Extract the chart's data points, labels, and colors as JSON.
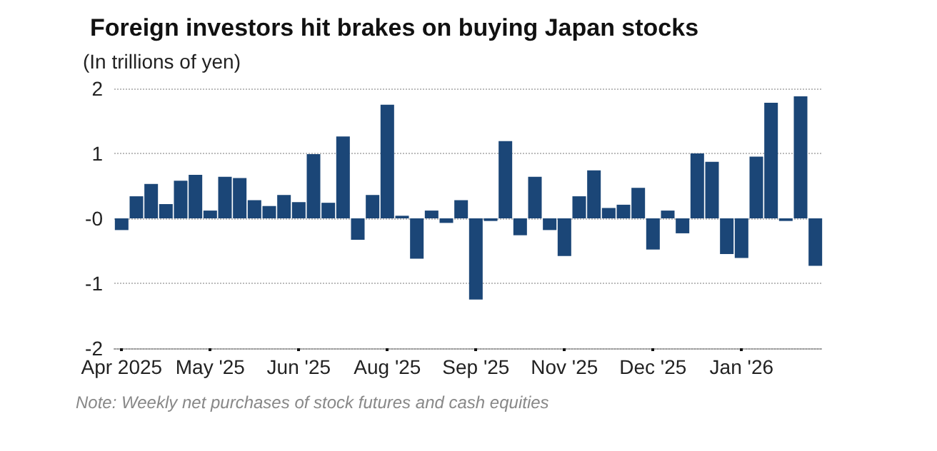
{
  "chart_data": {
    "type": "bar",
    "title": "Foreign investors hit brakes on buying Japan stocks",
    "ylabel": "(In trillions of yen)",
    "categories": [
      "Apr 2025",
      null,
      null,
      null,
      null,
      null,
      "May '25",
      null,
      null,
      null,
      null,
      null,
      "Jun '25",
      null,
      null,
      null,
      null,
      null,
      "Aug '25",
      null,
      null,
      null,
      null,
      null,
      "Sep '25",
      null,
      null,
      null,
      null,
      null,
      "Nov '25",
      null,
      null,
      null,
      null,
      null,
      "Dec '25",
      null,
      null,
      null,
      null,
      null,
      "Jan '26",
      null,
      null,
      null,
      null,
      null
    ],
    "values": [
      -0.18,
      0.34,
      0.53,
      0.22,
      0.58,
      0.67,
      0.12,
      0.64,
      0.62,
      0.28,
      0.19,
      0.36,
      0.25,
      0.99,
      0.24,
      1.26,
      -0.33,
      0.36,
      1.75,
      0.04,
      -0.62,
      0.12,
      -0.07,
      0.28,
      -1.25,
      -0.04,
      1.19,
      -0.26,
      0.64,
      -0.18,
      -0.58,
      0.34,
      0.74,
      0.16,
      0.21,
      0.47,
      -0.48,
      0.12,
      -0.23,
      1.0,
      0.87,
      -0.55,
      -0.61,
      0.95,
      1.78,
      -0.04,
      1.88,
      -0.73
    ],
    "color": "#1b4677",
    "ylim": [
      -2,
      2
    ],
    "yticks": [
      -2,
      -1,
      {
        "value": 0,
        "label": "-0"
      },
      1,
      2
    ],
    "grid": "y",
    "annotations": [
      "Note: Weekly net purchases of stock futures and cash equities"
    ]
  }
}
